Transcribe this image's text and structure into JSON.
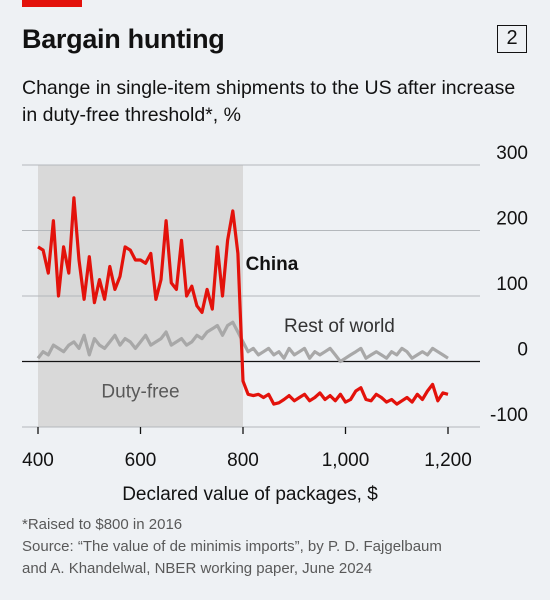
{
  "header": {
    "title": "Bargain hunting",
    "badge": "2"
  },
  "subtitle": "Change in single-item shipments to the US after increase in duty-free threshold*, %",
  "footnotes": {
    "note": "*Raised to $800 in 2016",
    "source_line1": "Source: “The value of de minimis imports”, by P. D. Fajgelbaum",
    "source_line2": "and A. Khandelwal, NBER working paper, June 2024"
  },
  "colors": {
    "china": "#e3120b",
    "rest_of_world": "#a8a8a8",
    "shade": "#d9d9d9",
    "accent": "#e3120b"
  },
  "chart_data": {
    "type": "line",
    "title": "Bargain hunting",
    "subtitle": "Change in single-item shipments to the US after increase in duty-free threshold*, %",
    "xlabel": "Declared value of packages, $",
    "ylabel": "",
    "xlim": [
      400,
      1200
    ],
    "ylim": [
      -100,
      300
    ],
    "x_ticks": [
      400,
      600,
      800,
      1000,
      1200
    ],
    "x_tick_labels": [
      "400",
      "600",
      "800",
      "1,000",
      "1,200"
    ],
    "y_ticks": [
      300,
      200,
      100,
      0,
      -100
    ],
    "y_tick_labels": [
      "300",
      "200",
      "100",
      "0",
      "-100"
    ],
    "y_axis_side": "right",
    "grid": true,
    "shaded_region": {
      "x": [
        400,
        800
      ],
      "label": "Duty-free"
    },
    "series": [
      {
        "name": "China",
        "x": [
          400,
          410,
          420,
          430,
          440,
          450,
          460,
          470,
          480,
          490,
          500,
          510,
          520,
          530,
          540,
          550,
          560,
          570,
          580,
          590,
          600,
          610,
          620,
          630,
          640,
          650,
          660,
          670,
          680,
          690,
          700,
          710,
          720,
          730,
          740,
          750,
          760,
          770,
          780,
          790,
          800,
          810,
          820,
          830,
          840,
          850,
          860,
          870,
          880,
          890,
          900,
          910,
          920,
          930,
          940,
          950,
          960,
          970,
          980,
          990,
          1000,
          1010,
          1020,
          1030,
          1040,
          1050,
          1060,
          1070,
          1080,
          1090,
          1100,
          1110,
          1120,
          1130,
          1140,
          1150,
          1160,
          1170,
          1180,
          1190,
          1200
        ],
        "values": [
          175,
          170,
          135,
          215,
          100,
          175,
          135,
          250,
          155,
          95,
          160,
          90,
          125,
          95,
          145,
          110,
          130,
          175,
          170,
          155,
          155,
          150,
          165,
          95,
          125,
          215,
          120,
          110,
          185,
          100,
          115,
          85,
          75,
          110,
          80,
          175,
          100,
          185,
          230,
          165,
          -30,
          -50,
          -52,
          -50,
          -55,
          -50,
          -65,
          -63,
          -58,
          -52,
          -60,
          -55,
          -50,
          -60,
          -55,
          -48,
          -58,
          -52,
          -60,
          -50,
          -62,
          -58,
          -45,
          -40,
          -58,
          -60,
          -50,
          -55,
          -62,
          -58,
          -65,
          -60,
          -55,
          -62,
          -50,
          -58,
          -45,
          -35,
          -60,
          -48,
          -50
        ]
      },
      {
        "name": "Rest of world",
        "x": [
          400,
          410,
          420,
          430,
          440,
          450,
          460,
          470,
          480,
          490,
          500,
          510,
          520,
          530,
          540,
          550,
          560,
          570,
          580,
          590,
          600,
          610,
          620,
          630,
          640,
          650,
          660,
          670,
          680,
          690,
          700,
          710,
          720,
          730,
          740,
          750,
          760,
          770,
          780,
          790,
          800,
          810,
          820,
          830,
          840,
          850,
          860,
          870,
          880,
          890,
          900,
          910,
          920,
          930,
          940,
          950,
          960,
          970,
          980,
          990,
          1000,
          1010,
          1020,
          1030,
          1040,
          1050,
          1060,
          1070,
          1080,
          1090,
          1100,
          1110,
          1120,
          1130,
          1140,
          1150,
          1160,
          1170,
          1180,
          1190,
          1200
        ],
        "values": [
          5,
          15,
          10,
          25,
          20,
          15,
          25,
          30,
          20,
          40,
          10,
          35,
          25,
          20,
          30,
          40,
          25,
          35,
          30,
          20,
          30,
          40,
          25,
          30,
          35,
          45,
          25,
          30,
          35,
          25,
          30,
          40,
          35,
          45,
          50,
          55,
          40,
          55,
          60,
          45,
          30,
          15,
          20,
          10,
          15,
          20,
          10,
          15,
          5,
          20,
          10,
          15,
          20,
          5,
          15,
          10,
          15,
          20,
          10,
          0,
          5,
          10,
          15,
          20,
          5,
          10,
          15,
          10,
          5,
          15,
          10,
          20,
          15,
          5,
          10,
          15,
          10,
          20,
          15,
          10,
          5
        ]
      }
    ],
    "annotations": [
      "China",
      "Rest of world",
      "Duty-free"
    ]
  }
}
